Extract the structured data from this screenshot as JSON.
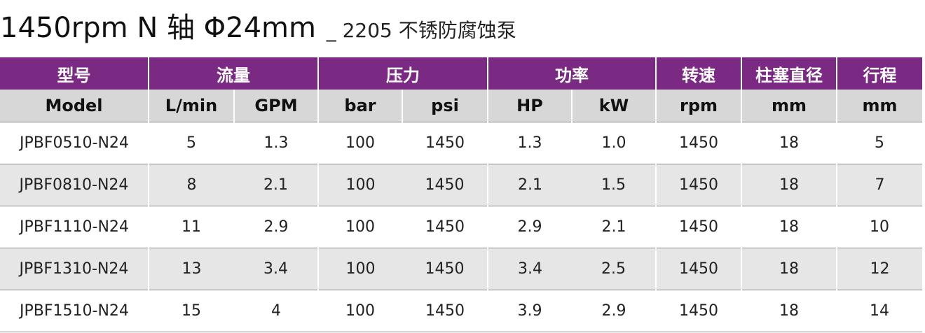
{
  "title": {
    "main": "1450rpm  N 轴  Φ24mm",
    "sub": "_ 2205 不锈防腐蚀泵"
  },
  "header_cn": {
    "model": "型号",
    "flow": "流量",
    "pressure": "压力",
    "power": "功率",
    "speed": "转速",
    "plunger": "柱塞直径",
    "stroke": "行程"
  },
  "header_en": [
    "Model",
    "L/min",
    "GPM",
    "bar",
    "psi",
    "HP",
    "kW",
    "rpm",
    "mm",
    "mm"
  ],
  "rows": [
    [
      "JPBF0510-N24",
      "5",
      "1.3",
      "100",
      "1450",
      "1.3",
      "1.0",
      "1450",
      "18",
      "5"
    ],
    [
      "JPBF0810-N24",
      "8",
      "2.1",
      "100",
      "1450",
      "2.1",
      "1.5",
      "1450",
      "18",
      "7"
    ],
    [
      "JPBF1110-N24",
      "11",
      "2.9",
      "100",
      "1450",
      "2.9",
      "2.1",
      "1450",
      "18",
      "10"
    ],
    [
      "JPBF1310-N24",
      "13",
      "3.4",
      "100",
      "1450",
      "3.4",
      "2.5",
      "1450",
      "18",
      "12"
    ],
    [
      "JPBF1510-N24",
      "15",
      "4",
      "100",
      "1450",
      "3.9",
      "2.9",
      "1450",
      "18",
      "14"
    ]
  ],
  "colors": {
    "header_purple": "#7b2a83",
    "subheader_gray": "#d7d7d7",
    "row_alt_gray": "#e6e6e6"
  }
}
